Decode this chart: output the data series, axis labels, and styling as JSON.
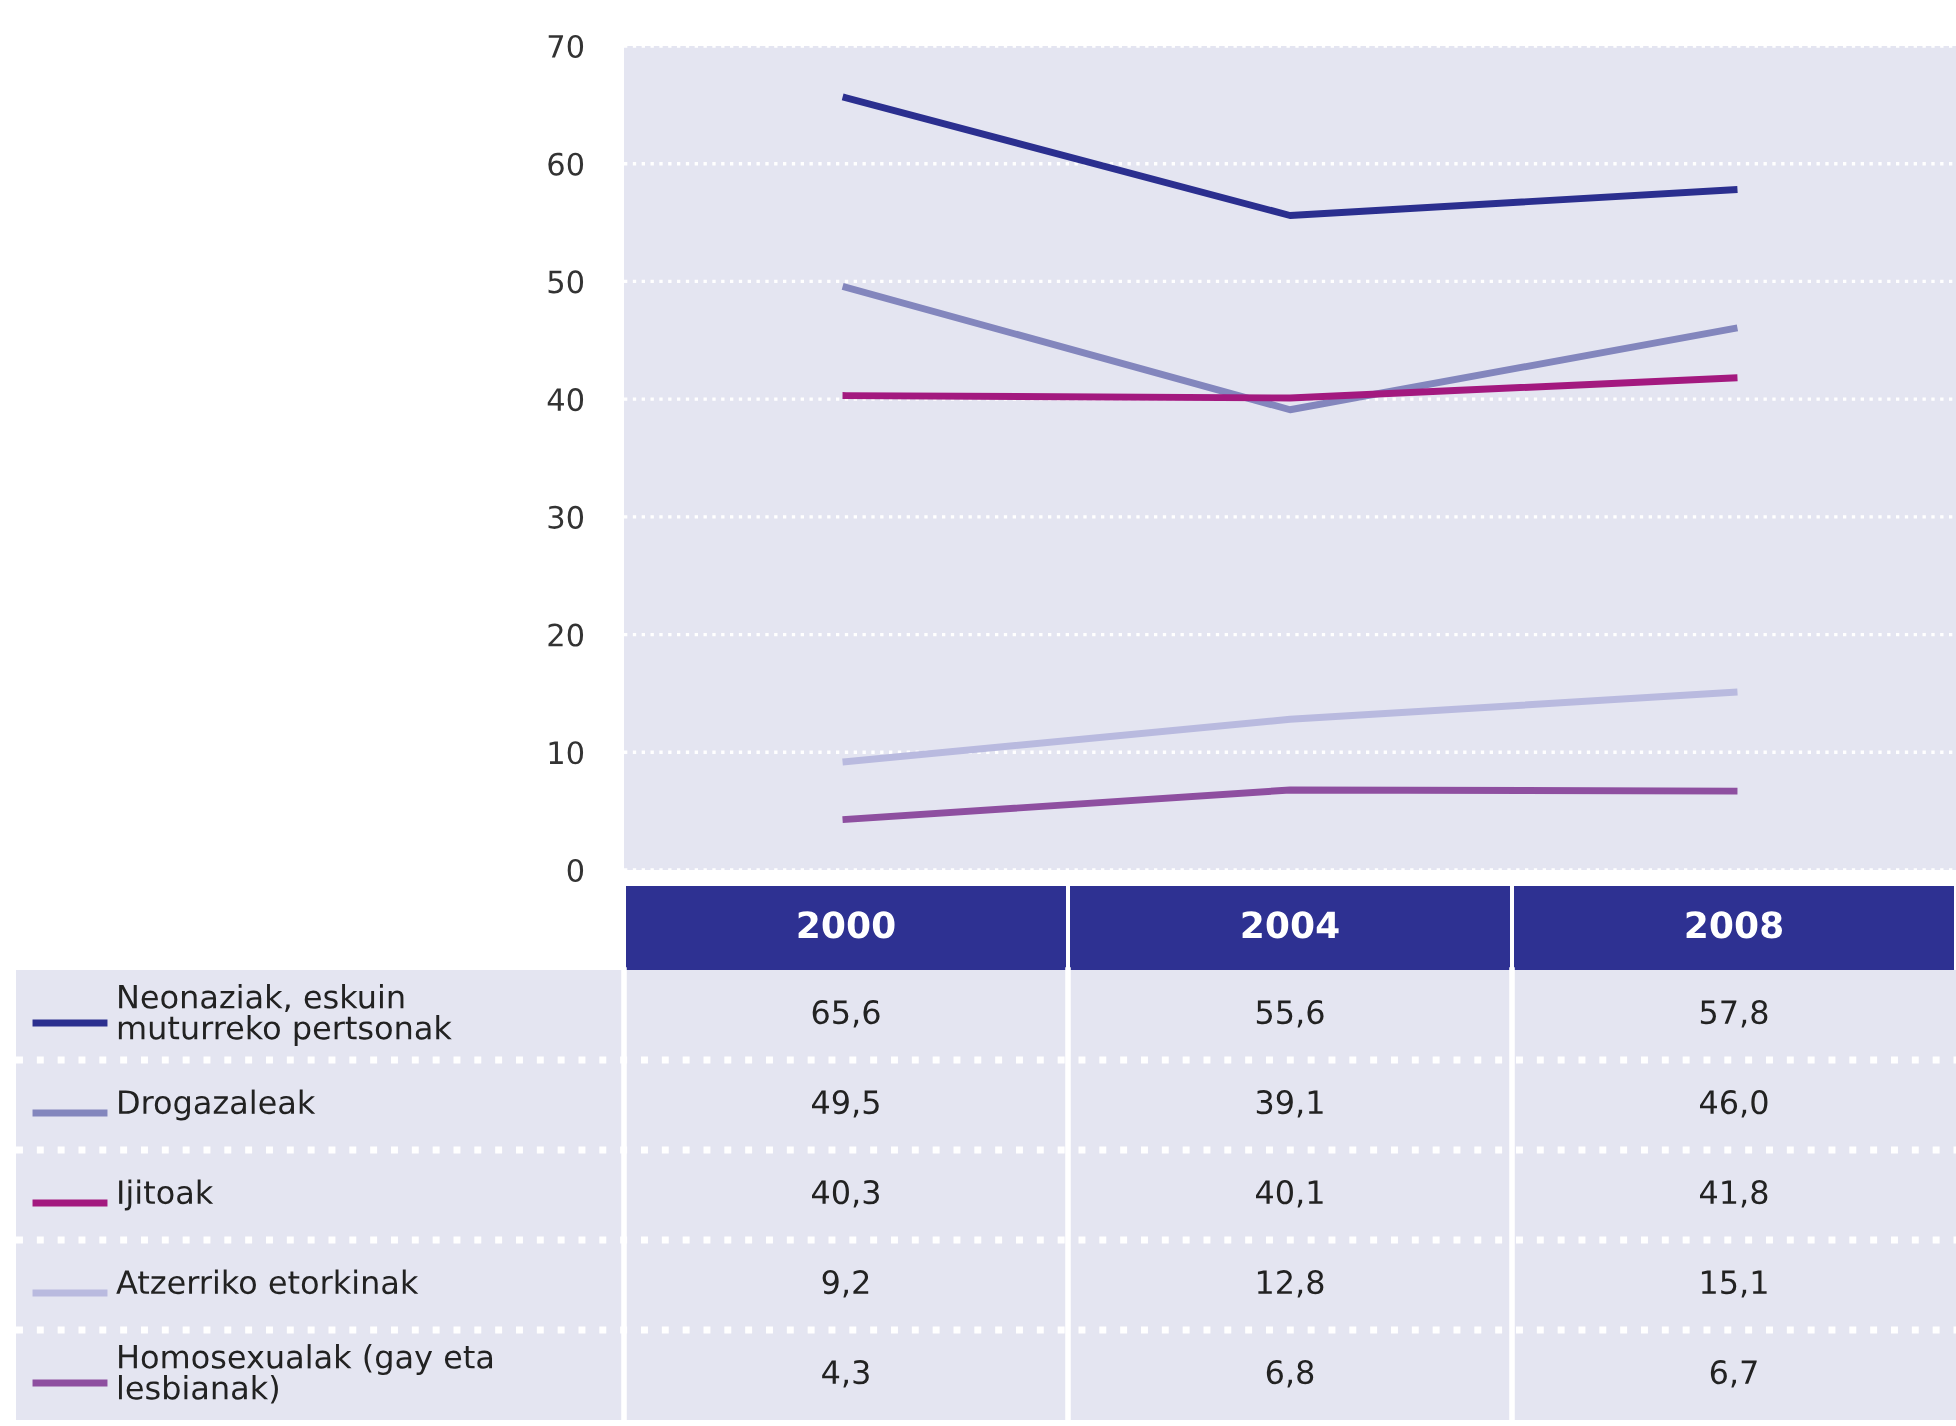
{
  "chart_data": {
    "type": "line",
    "categories": [
      "2000",
      "2004",
      "2008"
    ],
    "series": [
      {
        "name": "Neonaziak, eskuin\nmuturreko pertsonak",
        "color": "#2b2f8f",
        "values": [
          65.6,
          55.6,
          57.8
        ],
        "value_labels": [
          "65,6",
          "55,6",
          "57,8"
        ]
      },
      {
        "name": "Drogazaleak",
        "color": "#8386bd",
        "values": [
          49.5,
          39.1,
          46.0
        ],
        "value_labels": [
          "49,5",
          "39,1",
          "46,0"
        ]
      },
      {
        "name": "Ijitoak",
        "color": "#a3197f",
        "values": [
          40.3,
          40.1,
          41.8
        ],
        "value_labels": [
          "40,3",
          "40,1",
          "41,8"
        ]
      },
      {
        "name": "Atzerriko etorkinak",
        "color": "#b9badf",
        "values": [
          9.2,
          12.8,
          15.1
        ],
        "value_labels": [
          "9,2",
          "12,8",
          "15,1"
        ]
      },
      {
        "name": "Homosexualak (gay eta\nlesbianak)",
        "color": "#8e4fa0",
        "values": [
          4.3,
          6.8,
          6.7
        ],
        "value_labels": [
          "4,3",
          "6,8",
          "6,7"
        ]
      }
    ],
    "ylim": [
      0,
      70
    ],
    "yticks": [
      0,
      10,
      20,
      30,
      40,
      50,
      60,
      70
    ],
    "grid": "y",
    "legend": "bottom",
    "marker": "none",
    "line_style": "solid"
  }
}
